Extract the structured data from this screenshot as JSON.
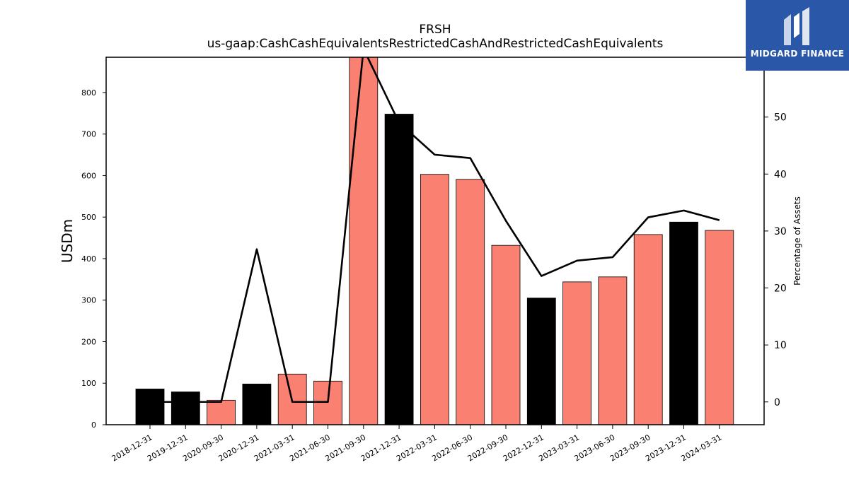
{
  "chart_data": {
    "type": "bar",
    "title": "FRSH",
    "subtitle": "us-gaap:CashCashEquivalentsRestrictedCashAndRestrictedCashEquivalents",
    "ylabel": "USDm",
    "y2label": "Percentage of Assets",
    "ylim": [
      0,
      885
    ],
    "y2lim": [
      -4,
      60.5
    ],
    "yticks": [
      0,
      100,
      200,
      300,
      400,
      500,
      600,
      700,
      800
    ],
    "y2ticks": [
      0,
      10,
      20,
      30,
      40,
      50
    ],
    "categories": [
      "2018-12-31",
      "2019-12-31",
      "2020-09-30",
      "2020-12-31",
      "2021-03-31",
      "2021-06-30",
      "2021-09-30",
      "2021-12-31",
      "2022-03-31",
      "2022-06-30",
      "2022-09-30",
      "2022-12-31",
      "2023-03-31",
      "2023-06-30",
      "2023-09-30",
      "2023-12-31",
      "2024-03-31"
    ],
    "series": [
      {
        "type": "bar",
        "values": [
          86,
          79,
          59,
          98,
          122,
          105,
          890,
          748,
          603,
          591,
          432,
          305,
          344,
          356,
          458,
          488,
          468
        ],
        "colors": [
          "#000000",
          "#000000",
          "#fa8072",
          "#000000",
          "#fa8072",
          "#fa8072",
          "#fa8072",
          "#000000",
          "#fa8072",
          "#fa8072",
          "#fa8072",
          "#000000",
          "#fa8072",
          "#fa8072",
          "#fa8072",
          "#000000",
          "#fa8072"
        ]
      },
      {
        "type": "line",
        "axis": "right",
        "color": "#000000",
        "values": [
          0,
          0,
          0,
          26.8,
          0,
          0,
          62,
          49,
          43.4,
          42.8,
          31.8,
          22.1,
          24.8,
          25.4,
          32.4,
          33.6,
          31.9
        ]
      }
    ]
  },
  "logo": {
    "text": "MIDGARD FINANCE",
    "background": "#2b57a8"
  }
}
